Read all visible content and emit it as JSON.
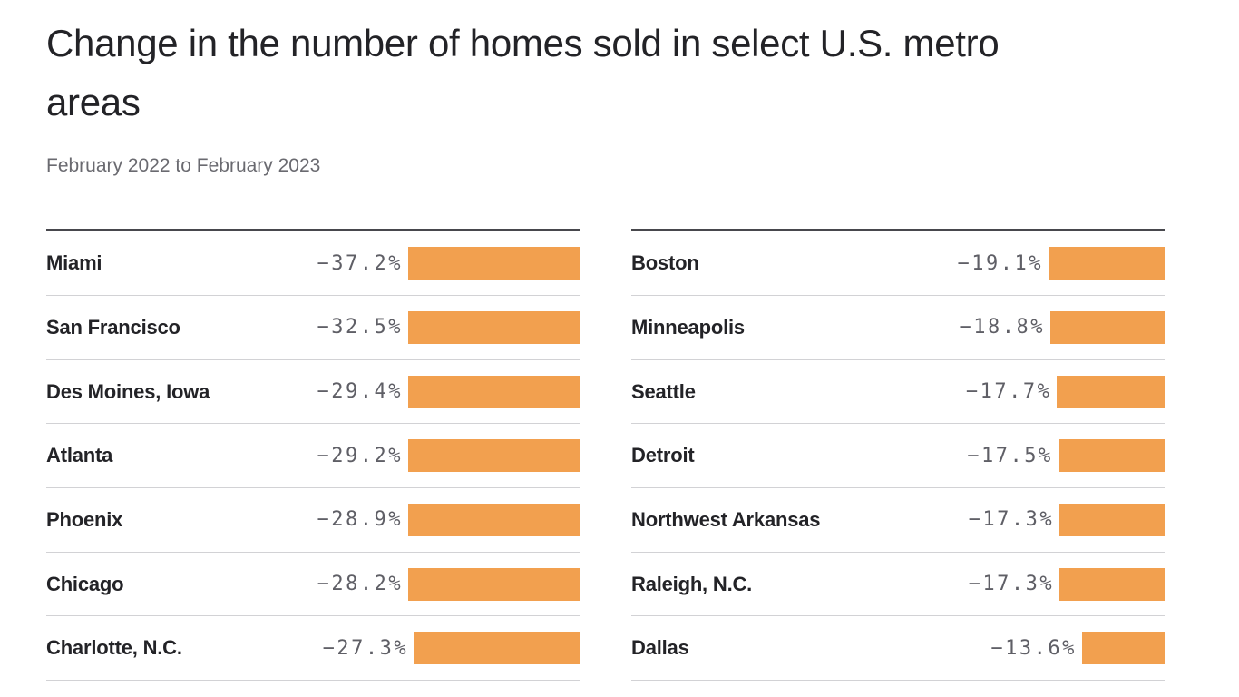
{
  "colors": {
    "bar": "#F2A04F",
    "title_text": "#232327",
    "subtitle_text": "#6A6A70",
    "value_text": "#5F5F66",
    "top_rule": "#48484D",
    "row_divider": "#D2D2D5",
    "background": "#FFFFFF"
  },
  "chart_data": {
    "type": "bar",
    "orientation": "horizontal",
    "bars_right_aligned": true,
    "title": "Change in the number of homes sold in select U.S. metro areas",
    "subtitle": "February 2022 to February 2023",
    "unit": "%",
    "value_range_shown": [
      -37.2,
      -13.6
    ],
    "grid": false,
    "legend": false,
    "bar_color": "#F2A04F",
    "columns": [
      {
        "name": "left",
        "rows": [
          {
            "label": "Miami",
            "value": -37.2,
            "value_label": "−37.2%"
          },
          {
            "label": "San Francisco",
            "value": -32.5,
            "value_label": "−32.5%"
          },
          {
            "label": "Des Moines, Iowa",
            "value": -29.4,
            "value_label": "−29.4%"
          },
          {
            "label": "Atlanta",
            "value": -29.2,
            "value_label": "−29.2%"
          },
          {
            "label": "Phoenix",
            "value": -28.9,
            "value_label": "−28.9%"
          },
          {
            "label": "Chicago",
            "value": -28.2,
            "value_label": "−28.2%"
          },
          {
            "label": "Charlotte, N.C.",
            "value": -27.3,
            "value_label": "−27.3%"
          }
        ]
      },
      {
        "name": "right",
        "rows": [
          {
            "label": "Boston",
            "value": -19.1,
            "value_label": "−19.1%"
          },
          {
            "label": "Minneapolis",
            "value": -18.8,
            "value_label": "−18.8%"
          },
          {
            "label": "Seattle",
            "value": -17.7,
            "value_label": "−17.7%"
          },
          {
            "label": "Detroit",
            "value": -17.5,
            "value_label": "−17.5%"
          },
          {
            "label": "Northwest Arkansas",
            "value": -17.3,
            "value_label": "−17.3%"
          },
          {
            "label": "Raleigh, N.C.",
            "value": -17.3,
            "value_label": "−17.3%"
          },
          {
            "label": "Dallas",
            "value": -13.6,
            "value_label": "−13.6%"
          }
        ]
      }
    ]
  }
}
